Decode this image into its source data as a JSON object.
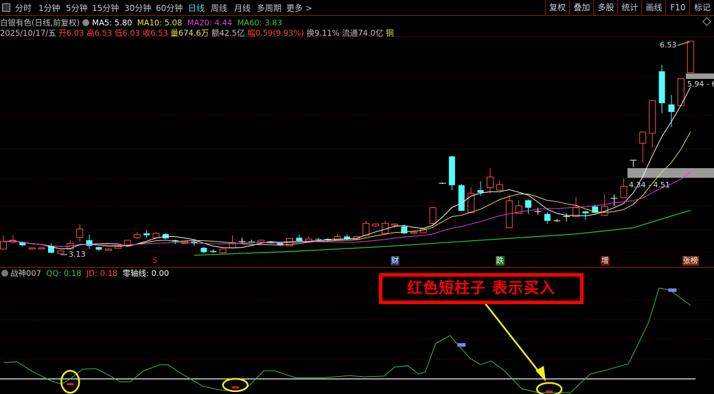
{
  "toolbar": {
    "tabs": [
      "分时",
      "1分钟",
      "5分钟",
      "15分钟",
      "30分钟",
      "60分钟",
      "日线",
      "周线",
      "月线",
      "多周期",
      "更多 >"
    ],
    "active_tab": "日线",
    "right_buttons": [
      "复权",
      "叠加",
      "多股",
      "统计",
      "画线",
      "F10",
      "标记"
    ]
  },
  "info": {
    "title": "白银有色(日线,前复权)",
    "ma5": "MA5: 5.80",
    "ma10": "MA10: 5.08",
    "ma20": "MA20: 4.44",
    "ma60": "MA60: 3.83",
    "date": "2025/10/17/五",
    "open": "开6.03",
    "high": "高6.53",
    "low": "低6.03",
    "close": "收6.53",
    "volume": "量674.6万",
    "amount": "额42.5亿",
    "change": "幅0.59(9.93%)",
    "turnover": "换9.11%",
    "float_cap": "流通74.0亿",
    "sector": "铜"
  },
  "chart_labels": {
    "high_label": "6.53",
    "low_label": "3.13",
    "zone_upper": "5.94 - 6",
    "zone_lower": "4.34 - 4.51"
  },
  "events": [
    {
      "text": "S",
      "color": "#ff2020",
      "bg": "#000000"
    },
    {
      "text": "财",
      "color": "#ffffff",
      "bg": "#1a3a6a"
    },
    {
      "text": "跌",
      "color": "#ffffff",
      "bg": "#1e6a1e"
    },
    {
      "text": "增",
      "color": "#ffffff",
      "bg": "#6a1010"
    },
    {
      "text": "张榜",
      "color": "#ffffff",
      "bg": "#7a2a10"
    }
  ],
  "indicator": {
    "name": "战神007",
    "qq": "QQ: 0.18",
    "jd": "JD: 0.18",
    "zero": "零轴线: 0.00",
    "annotation": "红色短柱子 表示买入"
  },
  "colors": {
    "up": "#ff5050",
    "down": "#54fcfc",
    "ma5": "#ffffff",
    "ma10": "#e8e850",
    "ma20": "#e040e0",
    "ma60": "#30c030",
    "qq": "#40c040",
    "grid": "#7a1010"
  },
  "chart_data": [
    {
      "type": "candlestick",
      "ohlc": [
        [
          3.21,
          3.43,
          3.21,
          3.33
        ],
        [
          3.32,
          3.43,
          3.3,
          3.35
        ],
        [
          3.32,
          3.33,
          3.25,
          3.27
        ],
        [
          3.21,
          3.23,
          3.2,
          3.23
        ],
        [
          3.21,
          3.24,
          3.21,
          3.23
        ],
        [
          3.26,
          3.3,
          3.14,
          3.15
        ],
        [
          3.14,
          3.18,
          3.13,
          3.18
        ],
        [
          3.21,
          3.35,
          3.2,
          3.3
        ],
        [
          3.39,
          3.61,
          3.33,
          3.53
        ],
        [
          3.35,
          3.44,
          3.21,
          3.26
        ],
        [
          3.24,
          3.25,
          3.18,
          3.2
        ],
        [
          3.19,
          3.22,
          3.19,
          3.21
        ],
        [
          3.22,
          3.26,
          3.22,
          3.25
        ],
        [
          3.27,
          3.35,
          3.27,
          3.35
        ],
        [
          3.39,
          3.48,
          3.37,
          3.44
        ],
        [
          3.46,
          3.51,
          3.39,
          3.43
        ],
        [
          3.39,
          3.48,
          3.39,
          3.46
        ],
        [
          3.45,
          3.46,
          3.37,
          3.38
        ],
        [
          3.35,
          3.36,
          3.29,
          3.33
        ],
        [
          3.3,
          3.33,
          3.3,
          3.33
        ],
        [
          3.33,
          3.34,
          3.26,
          3.3
        ],
        [
          3.23,
          3.24,
          3.14,
          3.16
        ],
        [
          3.18,
          3.2,
          3.15,
          3.16
        ],
        [
          3.15,
          3.21,
          3.15,
          3.21
        ],
        [
          3.23,
          3.43,
          3.22,
          3.31
        ],
        [
          3.33,
          3.39,
          3.31,
          3.33
        ],
        [
          3.33,
          3.36,
          3.3,
          3.32
        ],
        [
          3.32,
          3.36,
          3.31,
          3.35
        ],
        [
          3.33,
          3.34,
          3.3,
          3.31
        ],
        [
          3.31,
          3.32,
          3.26,
          3.27
        ],
        [
          3.26,
          3.38,
          3.26,
          3.38
        ],
        [
          3.39,
          3.44,
          3.33,
          3.34
        ],
        [
          3.33,
          3.42,
          3.33,
          3.37
        ],
        [
          3.37,
          3.39,
          3.34,
          3.36
        ],
        [
          3.37,
          3.38,
          3.34,
          3.35
        ],
        [
          3.35,
          3.45,
          3.35,
          3.41
        ],
        [
          3.41,
          3.44,
          3.36,
          3.37
        ],
        [
          3.37,
          3.42,
          3.37,
          3.41
        ],
        [
          3.43,
          3.66,
          3.42,
          3.62
        ],
        [
          3.58,
          3.62,
          3.56,
          3.61
        ],
        [
          3.46,
          3.66,
          3.45,
          3.62
        ],
        [
          3.59,
          3.62,
          3.55,
          3.61
        ],
        [
          3.57,
          3.6,
          3.45,
          3.46
        ],
        [
          3.46,
          3.48,
          3.45,
          3.48
        ],
        [
          3.47,
          3.54,
          3.47,
          3.53
        ],
        [
          3.62,
          3.88,
          3.59,
          3.87
        ],
        [
          4.26,
          4.27,
          4.25,
          4.26
        ],
        [
          4.69,
          4.7,
          4.15,
          4.23
        ],
        [
          4.23,
          4.25,
          3.82,
          3.82
        ],
        [
          3.79,
          4.2,
          3.78,
          4.1
        ],
        [
          4.15,
          4.29,
          4.06,
          4.11
        ],
        [
          4.19,
          4.5,
          4.1,
          4.36
        ],
        [
          4.15,
          4.3,
          4.14,
          4.24
        ],
        [
          3.55,
          4.08,
          3.54,
          3.98
        ],
        [
          3.78,
          3.99,
          3.77,
          3.9
        ],
        [
          3.99,
          4.0,
          3.77,
          3.87
        ],
        [
          3.81,
          3.87,
          3.76,
          3.81
        ],
        [
          3.77,
          3.8,
          3.61,
          3.66
        ],
        [
          3.66,
          3.69,
          3.64,
          3.66
        ],
        [
          3.73,
          3.78,
          3.65,
          3.73
        ],
        [
          3.73,
          4.04,
          3.72,
          3.87
        ],
        [
          3.81,
          3.82,
          3.68,
          3.78
        ],
        [
          3.89,
          3.92,
          3.78,
          3.79
        ],
        [
          3.75,
          4.08,
          3.74,
          3.89
        ],
        [
          4.02,
          4.08,
          3.9,
          4.02
        ],
        [
          4.03,
          4.34,
          4.02,
          4.21
        ],
        [
          4.63,
          4.63,
          4.52,
          4.63
        ],
        [
          4.9,
          5.08,
          4.59,
          5.08
        ],
        [
          5.06,
          5.58,
          4.83,
          5.58
        ],
        [
          6.05,
          6.15,
          5.38,
          5.54
        ],
        [
          5.52,
          5.67,
          5.16,
          5.4
        ],
        [
          5.5,
          5.93,
          5.5,
          5.93
        ],
        [
          6.03,
          6.53,
          6.03,
          6.53
        ]
      ],
      "ma_periods": [
        5,
        10,
        20
      ],
      "ma60_points": [
        [
          20,
          3.11
        ],
        [
          30,
          3.17
        ],
        [
          40,
          3.25
        ],
        [
          50,
          3.35
        ],
        [
          60,
          3.45
        ],
        [
          66,
          3.55
        ],
        [
          72,
          3.83
        ]
      ],
      "event_index": [
        16,
        41,
        52,
        63,
        72
      ],
      "ylim": [
        3.13,
        6.53
      ]
    },
    {
      "type": "line",
      "name": "QQ",
      "points": [
        [
          0,
          0.04
        ],
        [
          1.4,
          0.042
        ],
        [
          2.9,
          0.02
        ],
        [
          5,
          -0.005
        ],
        [
          6.1,
          -0.013
        ],
        [
          7,
          0.0
        ],
        [
          8.3,
          0.024
        ],
        [
          9.7,
          0.025
        ],
        [
          11.2,
          0.007
        ],
        [
          12.2,
          -0.007
        ],
        [
          13.3,
          -0.007
        ],
        [
          14.7,
          0.02
        ],
        [
          16.5,
          0.035
        ],
        [
          17.3,
          0.034
        ],
        [
          18.7,
          0.012
        ],
        [
          20.9,
          -0.018
        ],
        [
          22.7,
          -0.027
        ],
        [
          24.5,
          -0.03
        ],
        [
          25.5,
          -0.022
        ],
        [
          27.3,
          0.02
        ],
        [
          28.4,
          0.02
        ],
        [
          30.6,
          0.003
        ],
        [
          33.5,
          0.003
        ],
        [
          36.3,
          0.008
        ],
        [
          37.8,
          0.005
        ],
        [
          39.9,
          0.007
        ],
        [
          41,
          0.029
        ],
        [
          42.4,
          0.032
        ],
        [
          43.5,
          0.012
        ],
        [
          44.2,
          0.017
        ],
        [
          45.3,
          0.087
        ],
        [
          46.8,
          0.106
        ],
        [
          48.9,
          0.05
        ],
        [
          50,
          0.035
        ],
        [
          51.1,
          0.044
        ],
        [
          52.5,
          0.02
        ],
        [
          54.3,
          -0.024
        ],
        [
          56.1,
          -0.034
        ],
        [
          59.4,
          -0.034
        ],
        [
          61.5,
          0.012
        ],
        [
          62.9,
          0.02
        ],
        [
          65.5,
          0.037
        ],
        [
          67.6,
          0.138
        ],
        [
          68.7,
          0.222
        ],
        [
          69.8,
          0.218
        ],
        [
          72,
          0.18
        ]
      ],
      "zero_line": 0,
      "buy_bars": [
        [
          7,
          -0.012
        ],
        [
          24.3,
          -0.02
        ],
        [
          57.2,
          -0.03
        ]
      ],
      "sell_marks": [
        [
          48,
          0.084
        ],
        [
          70.1,
          0.218
        ]
      ]
    }
  ]
}
